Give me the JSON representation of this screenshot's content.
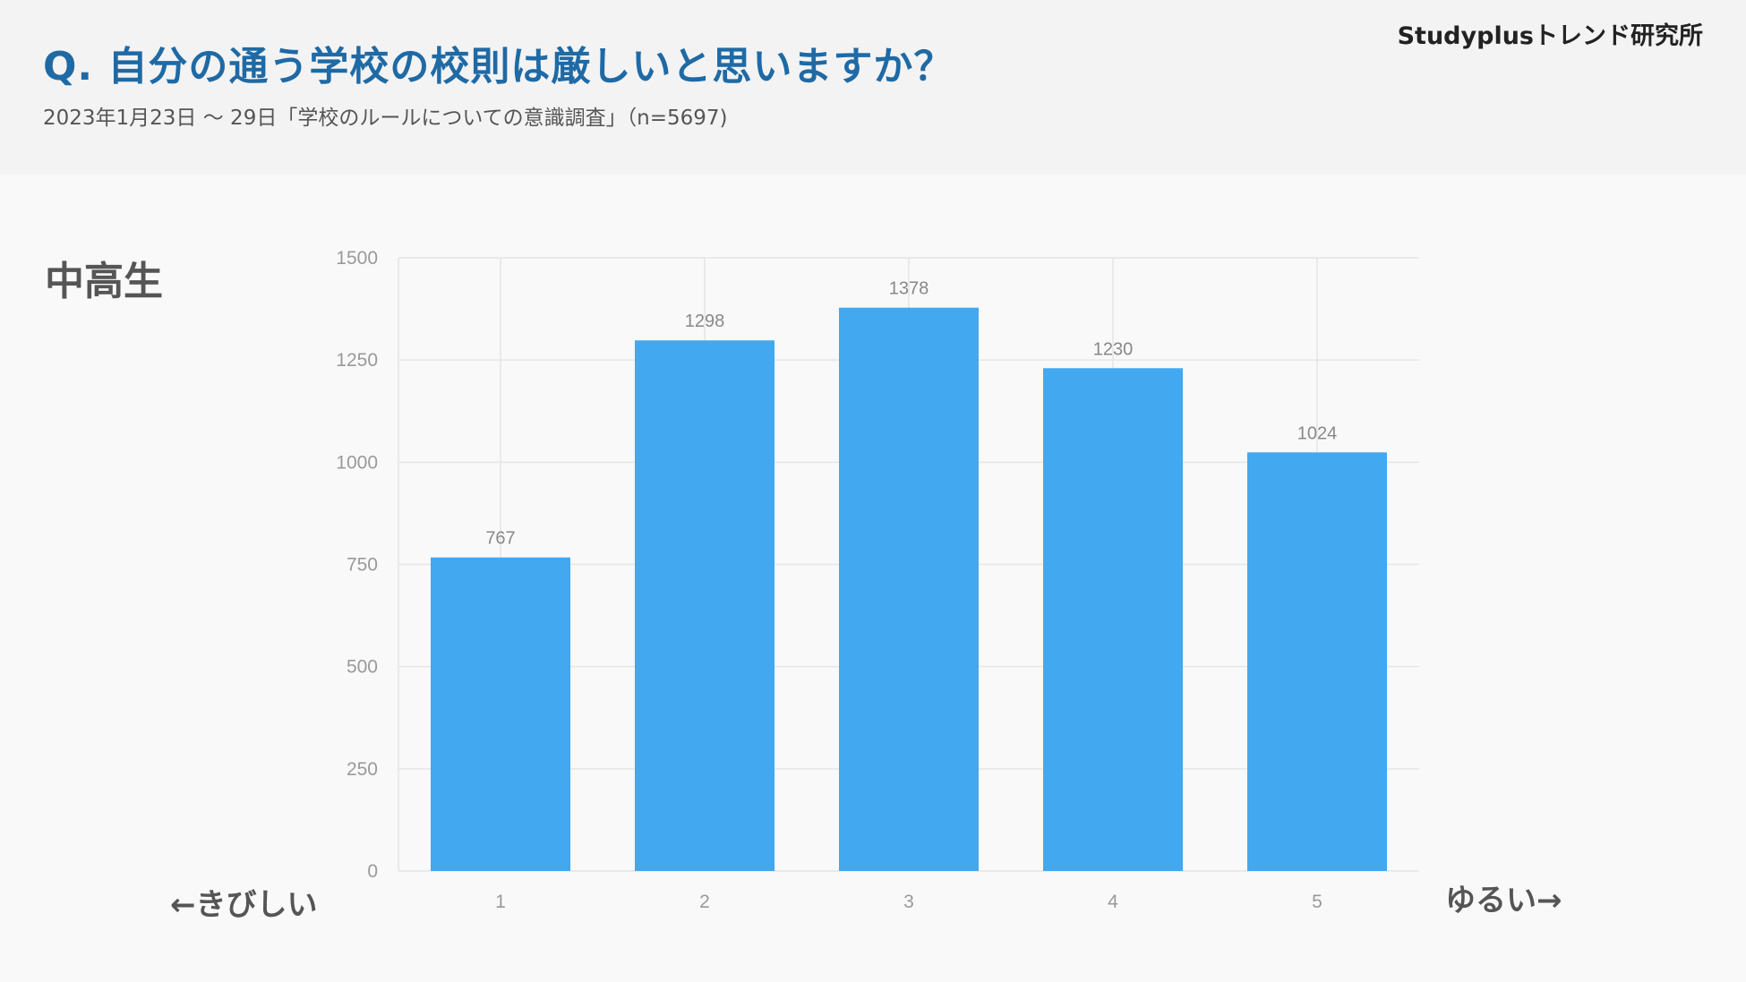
{
  "header": {
    "title": "Q. 自分の通う学校の校則は厳しいと思いますか？",
    "subtitle": "2023年1月23日 〜 29日「学校のルールについての意識調査」（n=5697)",
    "brand": "Studyplusトレンド研究所"
  },
  "segment_label": "中高生",
  "axis_hints": {
    "left": "←きびしい",
    "right": "ゆるい→"
  },
  "colors": {
    "bar": "#42a8f0",
    "title": "#1f6aa5",
    "grid": "#e6e6e6"
  },
  "chart_data": {
    "type": "bar",
    "categories": [
      "1",
      "2",
      "3",
      "4",
      "5"
    ],
    "values": [
      767,
      1298,
      1378,
      1230,
      1024
    ],
    "y_ticks": [
      0,
      250,
      500,
      750,
      1000,
      1250,
      1500
    ],
    "ylim": [
      0,
      1500
    ],
    "grid": true,
    "data_labels": true,
    "legend": "none"
  }
}
